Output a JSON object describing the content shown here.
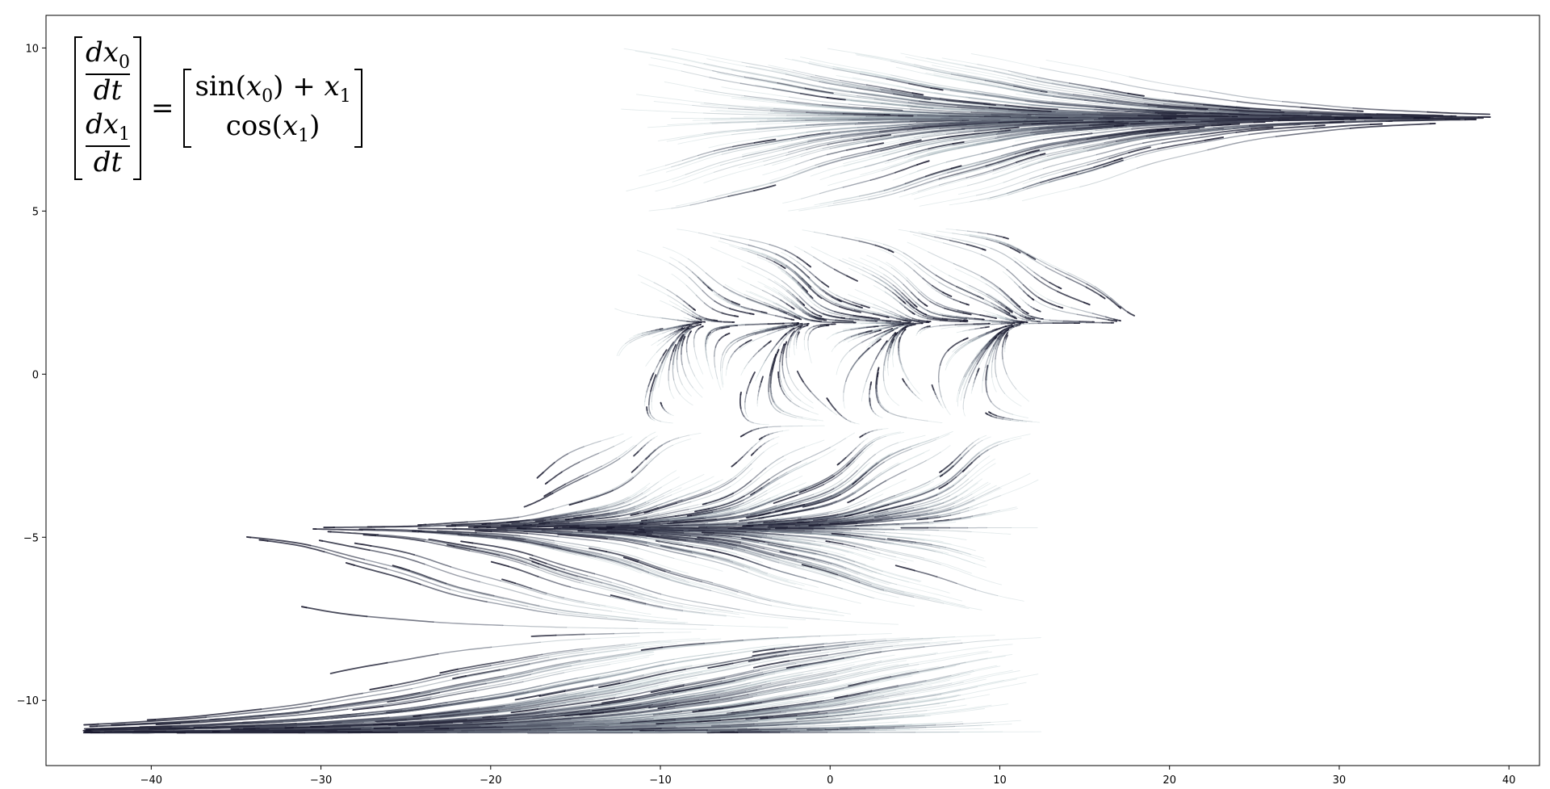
{
  "chart_data": {
    "type": "line",
    "title": "",
    "xlabel": "",
    "ylabel": "",
    "xlim": [
      -46.2,
      41.8
    ],
    "ylim": [
      -12.0,
      11.0
    ],
    "x_ticks": [
      -40,
      -30,
      -20,
      -10,
      0,
      10,
      20,
      30,
      40
    ],
    "x_tick_labels": [
      "−40",
      "−30",
      "−20",
      "−10",
      "0",
      "10",
      "20",
      "30",
      "40"
    ],
    "y_ticks": [
      -10,
      -5,
      0,
      5,
      10
    ],
    "y_tick_labels": [
      "−10",
      "−5",
      "0",
      "5",
      "10"
    ],
    "grid": false,
    "legend": "none",
    "description": "Streamlines of the 2D dynamical system dx0/dt = sin(x0) + x1, dx1/dt = cos(x1), fading from light teal at the seed end to dark navy at the head",
    "colors": {
      "tail": "#c9dcdc",
      "mid": "#7a8290",
      "head": "#15152a"
    },
    "bands": [
      {
        "y_range": [
          5.0,
          10.0
        ],
        "seed_x": [
          -12,
          12
        ],
        "converge_to": [
          35,
          8.0
        ],
        "max_x": 38
      },
      {
        "y_range": [
          -1.5,
          4.5
        ],
        "seed_x": [
          -12,
          13
        ],
        "converge_to_y": 1.57,
        "max_x": 23
      },
      {
        "y_range": [
          -8.0,
          -1.5
        ],
        "seed_x": [
          -13,
          13
        ],
        "converge_to": [
          -27,
          -4.7
        ],
        "min_x": -31
      },
      {
        "y_range": [
          -11.0,
          -8.0
        ],
        "seed_x": [
          -12,
          12
        ],
        "converge_to": [
          -41,
          -10.85
        ],
        "min_x": -42
      }
    ]
  },
  "equation": {
    "lhs_top_num": "dx",
    "lhs_top_sub": "0",
    "lhs_top_den": "dt",
    "lhs_bot_num": "dx",
    "lhs_bot_sub": "1",
    "lhs_bot_den": "dt",
    "equals": "=",
    "rhs_top_pre": "sin(",
    "rhs_top_var": "x",
    "rhs_top_sub": "0",
    "rhs_top_mid": ") + ",
    "rhs_top_var2": "x",
    "rhs_top_sub2": "1",
    "rhs_bot_pre": "cos(",
    "rhs_bot_var": "x",
    "rhs_bot_sub": "1",
    "rhs_bot_post": ")"
  }
}
